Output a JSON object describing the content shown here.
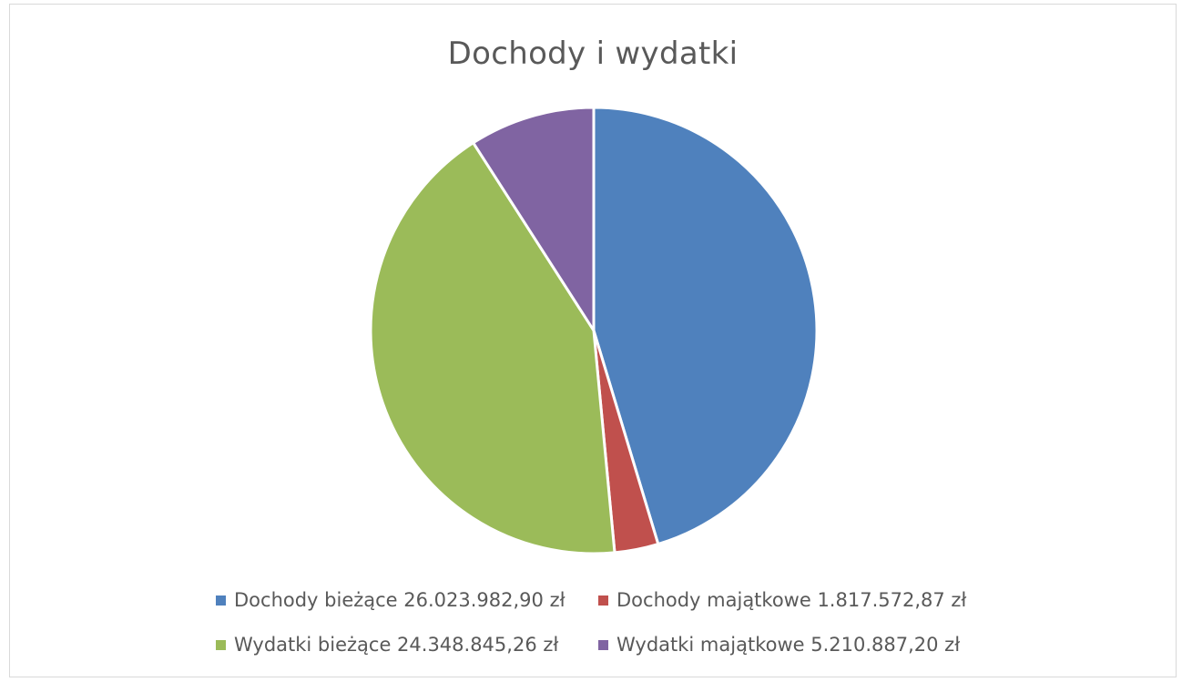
{
  "chart_data": {
    "type": "pie",
    "title": "Dochody i wydatki",
    "categories": [
      "Dochody bieżące",
      "Dochody majątkowe",
      "Wydatki bieżące",
      "Wydatki majątkowe"
    ],
    "values": [
      26023982.9,
      1817572.87,
      24348845.26,
      5210887.2
    ],
    "legend": [
      {
        "label": "Dochody bieżące 26.023.982,90 zł",
        "color": "#4F81BD"
      },
      {
        "label": "Dochody majątkowe 1.817.572,87 zł",
        "color": "#C0504D"
      },
      {
        "label": "Wydatki bieżące 24.348.845,26 zł",
        "color": "#9BBB59"
      },
      {
        "label": "Wydatki majątkowe 5.210.887,20 zł",
        "color": "#8064A2"
      }
    ],
    "colors": [
      "#4F81BD",
      "#C0504D",
      "#9BBB59",
      "#8064A2"
    ],
    "legend_position": "bottom"
  }
}
